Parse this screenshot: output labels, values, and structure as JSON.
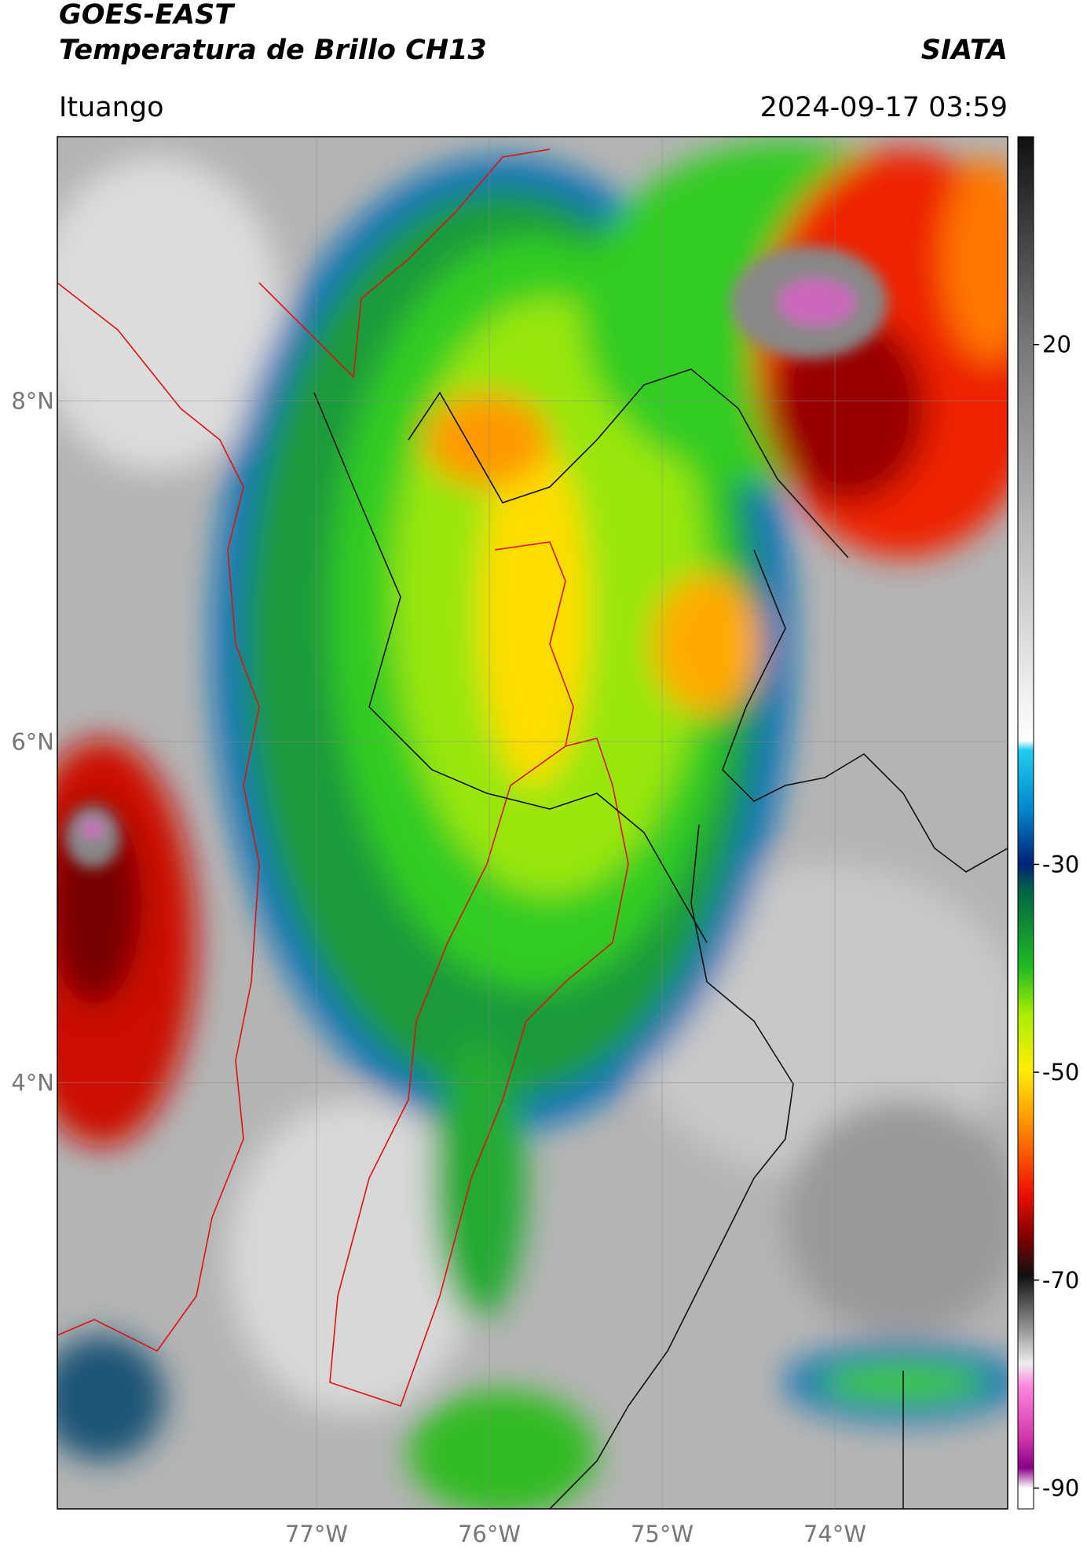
{
  "header": {
    "title": "GOES-EAST",
    "subtitle": "Temperatura de Brillo CH13",
    "agency": "SIATA",
    "location": "Ituango",
    "timestamp": "2024-09-17 03:59"
  },
  "chart_data": {
    "type": "map",
    "xlim": [
      -78.5,
      -73
    ],
    "ylim": [
      1.5,
      9.55
    ],
    "xticks": [
      {
        "value": -77,
        "label": "77°W"
      },
      {
        "value": -76,
        "label": "76°W"
      },
      {
        "value": -75,
        "label": "75°W"
      },
      {
        "value": -74,
        "label": "74°W"
      }
    ],
    "yticks": [
      {
        "value": 8,
        "label": "8°N"
      },
      {
        "value": 6,
        "label": "6°N"
      },
      {
        "value": 4,
        "label": "4°N"
      }
    ],
    "grid": true,
    "colorbar": {
      "lim": [
        -92,
        40
      ],
      "ticks": [
        20,
        -30,
        -50,
        -70,
        -90
      ]
    }
  }
}
